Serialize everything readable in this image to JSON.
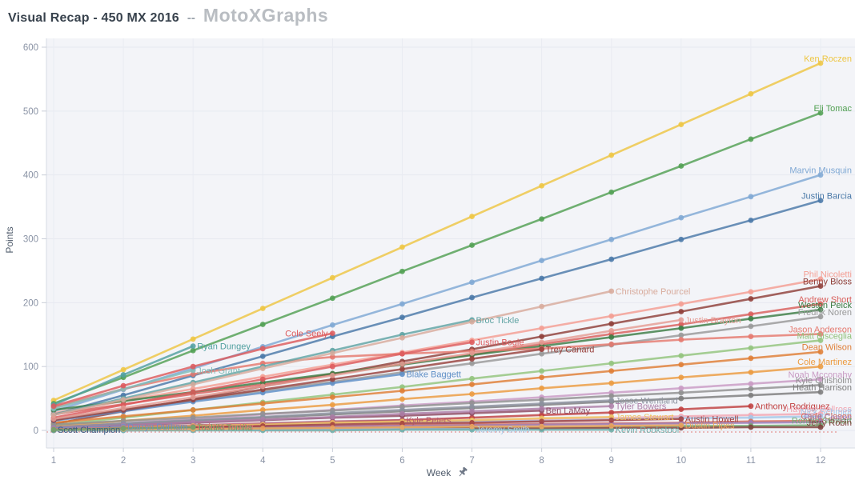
{
  "header": {
    "title": "Visual Recap - 450 MX 2016",
    "separator": "--",
    "brand": "MotoXGraphs"
  },
  "chart_data": {
    "type": "line",
    "title": "Visual Recap - 450 MX 2016",
    "xlabel": "Week",
    "ylabel": "Points",
    "x_ticks": [
      1,
      2,
      3,
      4,
      5,
      6,
      7,
      8,
      9,
      10,
      11,
      12
    ],
    "y_ticks": [
      0,
      100,
      200,
      300,
      400,
      500,
      600
    ],
    "xlim": [
      1,
      12
    ],
    "ylim": [
      0,
      600
    ],
    "grid": true,
    "legend_position": "inline-labels",
    "reference_line": {
      "value": 0,
      "style": "dotted",
      "color": "#e8a4a4"
    },
    "series": [
      {
        "name": "Ken Roczen",
        "color": "#eec643",
        "start_week": 1,
        "label_side": "edge",
        "values": [
          47,
          95,
          143,
          191,
          239,
          287,
          335,
          383,
          431,
          479,
          527,
          575
        ]
      },
      {
        "name": "Eli Tomac",
        "color": "#52a053",
        "start_week": 1,
        "label_side": "edge",
        "values": [
          42,
          83,
          125,
          166,
          207,
          249,
          290,
          331,
          373,
          414,
          456,
          497
        ]
      },
      {
        "name": "Marvin Musquin",
        "color": "#7fa8d4",
        "start_week": 1,
        "label_side": "edge",
        "values": [
          30,
          64,
          97,
          131,
          165,
          198,
          232,
          266,
          299,
          333,
          366,
          400
        ]
      },
      {
        "name": "Justin Barcia",
        "color": "#4a79a8",
        "start_week": 1,
        "label_side": "edge",
        "values": [
          25,
          55,
          86,
          116,
          147,
          177,
          208,
          238,
          268,
          299,
          329,
          360
        ]
      },
      {
        "name": "Phil Nicoletti",
        "color": "#f49e93",
        "start_week": 1,
        "label_side": "edge",
        "values": [
          27,
          46,
          65,
          84,
          103,
          122,
          141,
          160,
          179,
          198,
          217,
          237
        ]
      },
      {
        "name": "Benny Bloss",
        "color": "#8f3f39",
        "start_week": 1,
        "label_side": "edge",
        "values": [
          10,
          30,
          49,
          69,
          88,
          108,
          127,
          147,
          167,
          186,
          206,
          226
        ]
      },
      {
        "name": "Andrew Short",
        "color": "#d95f5b",
        "start_week": 1,
        "label_side": "edge",
        "values": [
          25,
          41,
          57,
          72,
          88,
          104,
          119,
          135,
          151,
          166,
          182,
          198
        ]
      },
      {
        "name": "Weston Peick",
        "color": "#3c7d44",
        "start_week": 1,
        "label_side": "edge",
        "values": [
          32,
          46,
          60,
          75,
          89,
          103,
          118,
          132,
          146,
          160,
          175,
          189
        ]
      },
      {
        "name": "Fredrik Noren",
        "color": "#999999",
        "start_week": 1,
        "label_side": "edge",
        "values": [
          18,
          33,
          47,
          62,
          76,
          91,
          105,
          120,
          134,
          149,
          163,
          178
        ]
      },
      {
        "name": "Jason Anderson",
        "color": "#e5796e",
        "start_week": 1,
        "label_side": "edge",
        "values": [
          36,
          65,
          88,
          105,
          115,
          120,
          124,
          128,
          135,
          142,
          147,
          151
        ]
      },
      {
        "name": "Matt Bisceglia",
        "color": "#93c47d",
        "start_week": 1,
        "label_side": "edge",
        "values": [
          8,
          20,
          32,
          44,
          56,
          68,
          81,
          93,
          105,
          117,
          129,
          141
        ]
      },
      {
        "name": "Dean Wilson",
        "color": "#df7e35",
        "start_week": 1,
        "label_side": "edge",
        "values": [
          12,
          22,
          32,
          42,
          52,
          62,
          72,
          83,
          93,
          103,
          113,
          123
        ]
      },
      {
        "name": "Cole Martinez",
        "color": "#ec9b40",
        "start_week": 1,
        "label_side": "edge",
        "values": [
          6,
          15,
          23,
          32,
          40,
          49,
          57,
          66,
          74,
          83,
          91,
          100
        ]
      },
      {
        "name": "Noah Mcconahy",
        "color": "#c99bc4",
        "start_week": 1,
        "label_side": "edge",
        "values": [
          4,
          11,
          18,
          25,
          32,
          39,
          45,
          52,
          59,
          66,
          73,
          80
        ]
      },
      {
        "name": "Kyle Chisholm",
        "color": "#909090",
        "start_week": 1,
        "label_side": "edge",
        "values": [
          9,
          15,
          20,
          26,
          31,
          37,
          43,
          48,
          54,
          59,
          65,
          71
        ]
      },
      {
        "name": "Heath Harrison",
        "color": "#7c7c7c",
        "start_week": 1,
        "label_side": "edge",
        "values": [
          5,
          10,
          15,
          20,
          25,
          30,
          35,
          40,
          45,
          50,
          55,
          60
        ]
      },
      {
        "name": "Anthony Rodriguez",
        "color": "#c04040",
        "start_week": 1,
        "label_side": "right",
        "values": [
          0,
          2,
          5,
          9,
          12,
          16,
          20,
          24,
          28,
          33,
          38
        ]
      },
      {
        "name": "Hayden Mellross",
        "color": "#f2a7b3",
        "start_week": 1,
        "label_side": "edge",
        "values": [
          2,
          4,
          6,
          9,
          11,
          13,
          15,
          17,
          19,
          22,
          24,
          26
        ]
      },
      {
        "name": "Nick Schmidt",
        "color": "#a3c7e8",
        "start_week": 1,
        "label_side": "edge",
        "values": [
          3,
          5,
          7,
          8,
          10,
          12,
          14,
          15,
          17,
          19,
          20,
          22
        ]
      },
      {
        "name": "Cade Clason",
        "color": "#d96a55",
        "start_week": 1,
        "label_side": "edge",
        "values": [
          1,
          2,
          4,
          5,
          6,
          8,
          9,
          10,
          11,
          12,
          14,
          15
        ]
      },
      {
        "name": "Paul Coates",
        "color": "#9b7fba",
        "start_week": 1,
        "label_side": "edge",
        "values": [
          2,
          3,
          4,
          5,
          6,
          7,
          8,
          9,
          10,
          11,
          12,
          13
        ]
      },
      {
        "name": "Ronnie Stewart",
        "color": "#72ad72",
        "start_week": 1,
        "label_side": "edge",
        "values": [
          1,
          2,
          2,
          3,
          3,
          4,
          5,
          5,
          6,
          7,
          7,
          8
        ]
      },
      {
        "name": "Jerry Robin",
        "color": "#80403c",
        "start_week": 1,
        "label_side": "edge",
        "values": [
          0,
          0,
          1,
          1,
          2,
          2,
          3,
          3,
          4,
          4,
          5,
          5
        ]
      },
      {
        "name": "Ryan Dungey",
        "color": "#52a0a0",
        "start_week": 1,
        "label_side": "right",
        "values": [
          40,
          87,
          132
        ]
      },
      {
        "name": "Josh Grant",
        "color": "#83bdb8",
        "start_week": 1,
        "label_side": "right",
        "values": [
          34,
          65,
          94
        ]
      },
      {
        "name": "Cole Seely",
        "color": "#dd5a5c",
        "start_week": 1,
        "label_side": "left",
        "values": [
          38,
          70,
          100,
          128,
          152
        ]
      },
      {
        "name": "Blake Baggett",
        "color": "#5e8fc7",
        "start_week": 1,
        "label_side": "right",
        "values": [
          15,
          30,
          45,
          59,
          74,
          88
        ]
      },
      {
        "name": "Kyle Peters",
        "color": "#b05a72",
        "start_week": 1,
        "label_side": "right",
        "values": [
          3,
          6,
          8,
          11,
          14,
          16
        ]
      },
      {
        "name": "Broc Tickle",
        "color": "#5fa3a3",
        "start_week": 1,
        "label_side": "right",
        "values": [
          25,
          50,
          75,
          100,
          125,
          150,
          173
        ]
      },
      {
        "name": "Justin Bogle",
        "color": "#dd5a5c",
        "start_week": 1,
        "label_side": "right",
        "values": [
          20,
          40,
          60,
          80,
          100,
          120,
          138
        ]
      },
      {
        "name": "Jeremy Smith",
        "color": "#aacbe8",
        "start_week": 1,
        "label_side": "right",
        "values": [
          0,
          0,
          1,
          1,
          2,
          2,
          2
        ]
      },
      {
        "name": "Trey Canard",
        "color": "#99423d",
        "start_week": 1,
        "label_side": "right",
        "values": [
          16,
          32,
          48,
          64,
          80,
          96,
          112,
          127
        ]
      },
      {
        "name": "Ben LaMay",
        "color": "#8d4a62",
        "start_week": 1,
        "label_side": "right",
        "values": [
          4,
          8,
          12,
          16,
          20,
          23,
          27,
          31
        ]
      },
      {
        "name": "Christophe Pourcel",
        "color": "#d8ab9c",
        "start_week": 1,
        "label_side": "right",
        "values": [
          24,
          48,
          72,
          97,
          121,
          145,
          170,
          194,
          218
        ]
      },
      {
        "name": "Jesse Wentland",
        "color": "#8d93a0",
        "start_week": 1,
        "label_side": "right",
        "values": [
          5,
          11,
          16,
          21,
          27,
          32,
          37,
          42,
          47
        ]
      },
      {
        "name": "Tyler Bowers",
        "color": "#ad7fa8",
        "start_week": 1,
        "label_side": "right",
        "values": [
          4,
          8,
          13,
          17,
          21,
          26,
          30,
          34,
          38
        ]
      },
      {
        "name": "James Stewart",
        "color": "#eec05e",
        "start_week": 1,
        "label_side": "right",
        "values": [
          2,
          5,
          7,
          9,
          12,
          14,
          16,
          19,
          21
        ]
      },
      {
        "name": "Kevin Rookstool",
        "color": "#6fb0ab",
        "start_week": 1,
        "label_side": "right",
        "values": [
          0,
          0,
          0,
          0,
          0,
          1,
          1,
          1,
          1
        ]
      },
      {
        "name": "Justin Brayton",
        "color": "#e59c94",
        "start_week": 1,
        "label_side": "right",
        "values": [
          18,
          35,
          52,
          69,
          86,
          104,
          121,
          138,
          156,
          173
        ]
      },
      {
        "name": "Austin Howell",
        "color": "#a33d3d",
        "start_week": 1,
        "label_side": "right",
        "values": [
          2,
          4,
          5,
          7,
          9,
          11,
          12,
          14,
          16,
          18
        ]
      },
      {
        "name": "Dustin Pipes",
        "color": "#f0a55e",
        "start_week": 1,
        "label_side": "right",
        "values": [
          1,
          2,
          2,
          3,
          4,
          5,
          6,
          6,
          7,
          8
        ]
      },
      {
        "name": "Scott Champion",
        "color": "#3b5a82",
        "start_week": 1,
        "label_side": "right",
        "values": [
          1
        ]
      },
      {
        "name": "Darryn Durham",
        "color": "#6d90c5",
        "start_week": 1,
        "label_side": "right",
        "values": [
          3,
          6
        ]
      },
      {
        "name": "Dakota Tedder",
        "color": "#df7a76",
        "start_week": 1,
        "label_side": "right",
        "values": [
          2,
          4,
          6
        ]
      },
      {
        "name": "Toshiki Tomita",
        "color": "#6ba56b",
        "start_week": 1,
        "label_side": "right",
        "values": [
          1,
          3,
          5
        ]
      }
    ]
  }
}
